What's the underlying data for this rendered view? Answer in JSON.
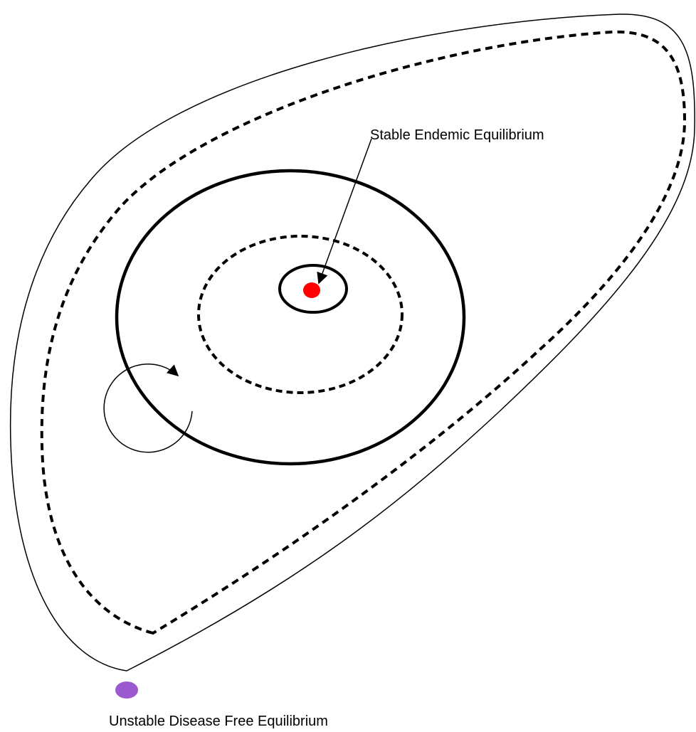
{
  "labels": {
    "stable": "Stable Endemic Equilibrium",
    "unstable": "Unstable Disease Free Equilibrium"
  }
}
